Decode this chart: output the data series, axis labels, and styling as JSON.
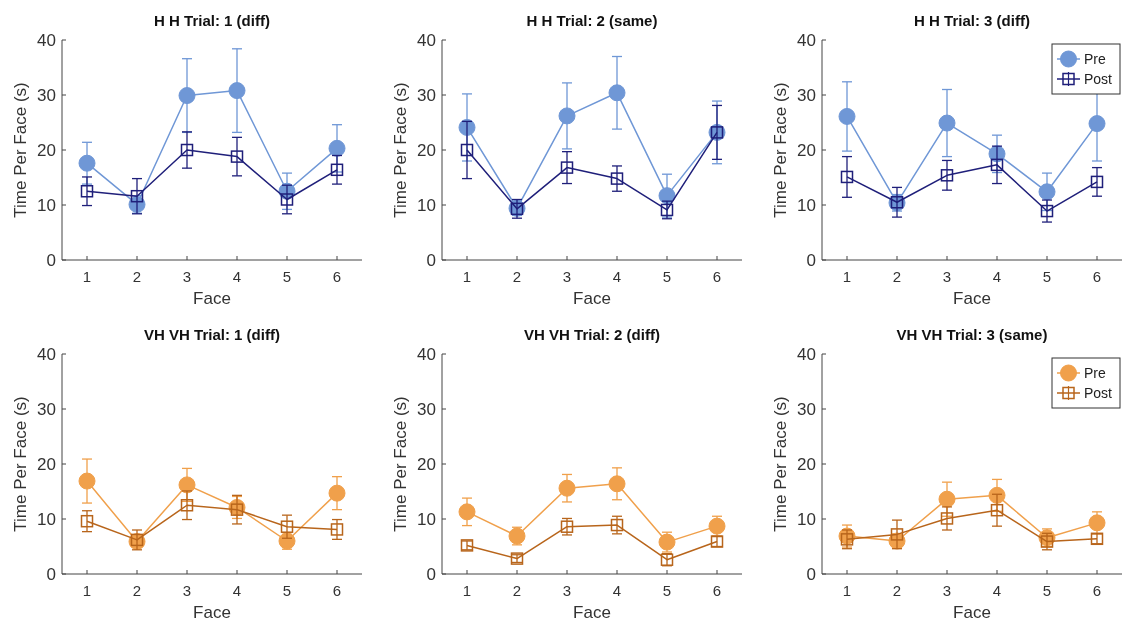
{
  "chart_data": [
    {
      "type": "line",
      "title": "H H Trial: 1 (diff)",
      "xlabel": "Face",
      "ylabel": "Time Per Face (s)",
      "x": [
        1,
        2,
        3,
        4,
        5,
        6
      ],
      "xlim": [
        0.5,
        6.5
      ],
      "xticks": [
        1,
        2,
        3,
        4,
        5,
        6
      ],
      "ylim": [
        0,
        40
      ],
      "yticks": [
        0,
        10,
        20,
        30,
        40
      ],
      "legend": false,
      "series": [
        {
          "color": "#6f97d6",
          "marker": "circle",
          "values": [
            17.6,
            10.1,
            29.9,
            30.8,
            12.5,
            20.3
          ],
          "errors": [
            3.8,
            1.6,
            6.7,
            7.6,
            3.3,
            4.3
          ]
        },
        {
          "color": "#1f1f7a",
          "marker": "square",
          "values": [
            12.5,
            11.6,
            20.0,
            18.8,
            11.0,
            16.4
          ],
          "errors": [
            2.6,
            3.2,
            3.3,
            3.5,
            2.6,
            2.6
          ]
        }
      ]
    },
    {
      "type": "line",
      "title": "H H Trial: 2 (same)",
      "xlabel": "Face",
      "ylabel": "Time Per Face (s)",
      "x": [
        1,
        2,
        3,
        4,
        5,
        6
      ],
      "xlim": [
        0.5,
        6.5
      ],
      "xticks": [
        1,
        2,
        3,
        4,
        5,
        6
      ],
      "ylim": [
        0,
        40
      ],
      "yticks": [
        0,
        10,
        20,
        30,
        40
      ],
      "legend": false,
      "series": [
        {
          "color": "#6f97d6",
          "marker": "circle",
          "values": [
            24.1,
            9.4,
            26.2,
            30.4,
            11.7,
            23.2
          ],
          "errors": [
            6.1,
            1.3,
            6.0,
            6.6,
            3.9,
            5.7
          ]
        },
        {
          "color": "#1f1f7a",
          "marker": "square",
          "values": [
            20.0,
            9.3,
            16.8,
            14.8,
            9.1,
            23.2
          ],
          "errors": [
            5.2,
            1.7,
            2.9,
            2.3,
            1.6,
            4.9
          ]
        }
      ]
    },
    {
      "type": "line",
      "title": "H H Trial: 3 (diff)",
      "xlabel": "Face",
      "ylabel": "Time Per Face (s)",
      "x": [
        1,
        2,
        3,
        4,
        5,
        6
      ],
      "xlim": [
        0.5,
        6.5
      ],
      "xticks": [
        1,
        2,
        3,
        4,
        5,
        6
      ],
      "ylim": [
        0,
        40
      ],
      "yticks": [
        0,
        10,
        20,
        30,
        40
      ],
      "legend": "top right",
      "series": [
        {
          "name": "Pre",
          "color": "#6f97d6",
          "marker": "circle",
          "values": [
            26.1,
            10.4,
            24.9,
            19.3,
            12.4,
            24.8
          ],
          "errors": [
            6.3,
            1.5,
            6.1,
            3.4,
            3.4,
            6.8
          ]
        },
        {
          "name": "Post",
          "color": "#1f1f7a",
          "marker": "square",
          "values": [
            15.1,
            10.5,
            15.4,
            17.3,
            8.9,
            14.2
          ],
          "errors": [
            3.7,
            2.7,
            2.7,
            3.4,
            2.0,
            2.6
          ]
        }
      ]
    },
    {
      "type": "line",
      "title": "VH VH Trial: 1 (diff)",
      "xlabel": "Face",
      "ylabel": "Time Per Face (s)",
      "x": [
        1,
        2,
        3,
        4,
        5,
        6
      ],
      "xlim": [
        0.5,
        6.5
      ],
      "xticks": [
        1,
        2,
        3,
        4,
        5,
        6
      ],
      "ylim": [
        0,
        40
      ],
      "yticks": [
        0,
        10,
        20,
        30,
        40
      ],
      "legend": false,
      "series": [
        {
          "color": "#f0a04b",
          "marker": "circle",
          "values": [
            16.9,
            5.9,
            16.2,
            12.1,
            6.0,
            14.7
          ],
          "errors": [
            4.0,
            1.0,
            3.0,
            2.0,
            1.5,
            3.0
          ]
        },
        {
          "color": "#b8651b",
          "marker": "square",
          "values": [
            9.6,
            6.2,
            12.5,
            11.7,
            8.6,
            8.1
          ],
          "errors": [
            1.9,
            1.8,
            2.6,
            2.6,
            2.1,
            1.8
          ]
        }
      ]
    },
    {
      "type": "line",
      "title": "VH VH Trial: 2 (diff)",
      "xlabel": "Face",
      "ylabel": "Time Per Face (s)",
      "x": [
        1,
        2,
        3,
        4,
        5,
        6
      ],
      "xlim": [
        0.5,
        6.5
      ],
      "xticks": [
        1,
        2,
        3,
        4,
        5,
        6
      ],
      "ylim": [
        0,
        40
      ],
      "yticks": [
        0,
        10,
        20,
        30,
        40
      ],
      "legend": false,
      "series": [
        {
          "color": "#f0a04b",
          "marker": "circle",
          "values": [
            11.3,
            6.9,
            15.6,
            16.4,
            5.8,
            8.7
          ],
          "errors": [
            2.5,
            1.6,
            2.5,
            2.9,
            1.8,
            1.8
          ]
        },
        {
          "color": "#b8651b",
          "marker": "square",
          "values": [
            5.2,
            2.8,
            8.6,
            8.9,
            2.6,
            5.9
          ],
          "errors": [
            0.8,
            0.7,
            1.5,
            1.6,
            1.1,
            0.9
          ]
        }
      ]
    },
    {
      "type": "line",
      "title": "VH VH Trial: 3 (same)",
      "xlabel": "Face",
      "ylabel": "Time Per Face (s)",
      "x": [
        1,
        2,
        3,
        4,
        5,
        6
      ],
      "xlim": [
        0.5,
        6.5
      ],
      "xticks": [
        1,
        2,
        3,
        4,
        5,
        6
      ],
      "ylim": [
        0,
        40
      ],
      "yticks": [
        0,
        10,
        20,
        30,
        40
      ],
      "legend": "top right",
      "series": [
        {
          "name": "Pre",
          "color": "#f0a04b",
          "marker": "circle",
          "values": [
            6.9,
            6.0,
            13.6,
            14.3,
            6.6,
            9.3
          ],
          "errors": [
            2.0,
            1.3,
            3.1,
            2.9,
            1.6,
            2.0
          ]
        },
        {
          "name": "Post",
          "color": "#b8651b",
          "marker": "square",
          "values": [
            6.3,
            7.2,
            10.1,
            11.6,
            5.9,
            6.4
          ],
          "errors": [
            1.7,
            2.6,
            2.1,
            2.9,
            1.5,
            0.9
          ]
        }
      ]
    }
  ]
}
